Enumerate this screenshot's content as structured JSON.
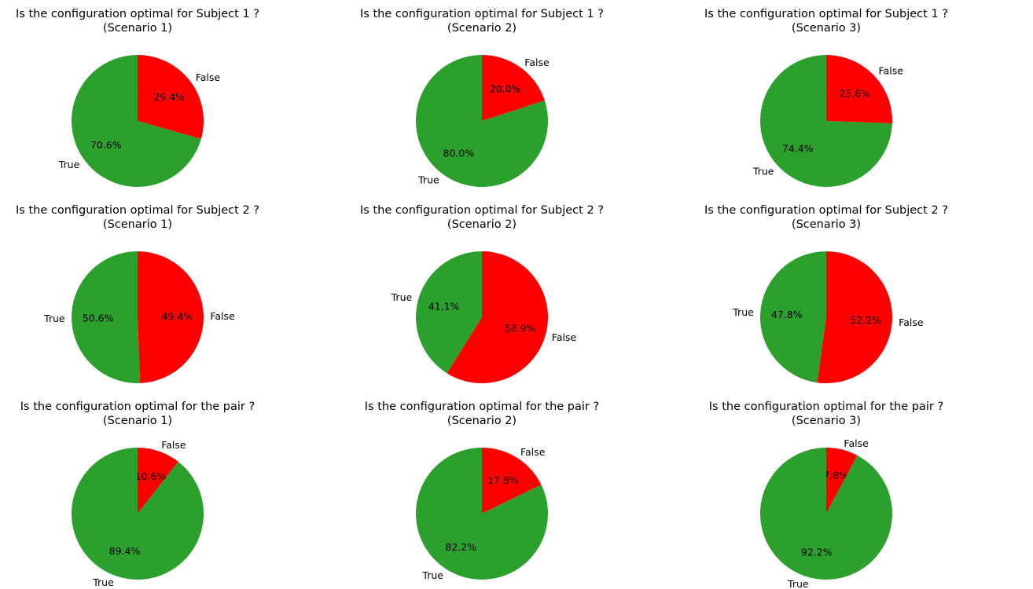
{
  "chart_data": [
    {
      "type": "pie",
      "title": "Is the configuration optimal for Subject 1 ?",
      "subtitle": "(Scenario 1)",
      "labels": [
        "False",
        "True"
      ],
      "values": [
        29.4,
        70.6
      ],
      "value_labels": [
        "29.4%",
        "70.6%"
      ],
      "colors": [
        "#ff0000",
        "#2ca02c"
      ],
      "start_angle": 90,
      "direction": "clockwise"
    },
    {
      "type": "pie",
      "title": "Is the configuration optimal for Subject 1 ?",
      "subtitle": "(Scenario 2)",
      "labels": [
        "False",
        "True"
      ],
      "values": [
        20.0,
        80.0
      ],
      "value_labels": [
        "20.0%",
        "80.0%"
      ],
      "colors": [
        "#ff0000",
        "#2ca02c"
      ],
      "start_angle": 90,
      "direction": "clockwise"
    },
    {
      "type": "pie",
      "title": "Is the configuration optimal for Subject 1 ?",
      "subtitle": "(Scenario 3)",
      "labels": [
        "False",
        "True"
      ],
      "values": [
        25.6,
        74.4
      ],
      "value_labels": [
        "25.6%",
        "74.4%"
      ],
      "colors": [
        "#ff0000",
        "#2ca02c"
      ],
      "start_angle": 90,
      "direction": "clockwise"
    },
    {
      "type": "pie",
      "title": "Is the configuration optimal for Subject 2 ?",
      "subtitle": "(Scenario 1)",
      "labels": [
        "False",
        "True"
      ],
      "values": [
        49.4,
        50.6
      ],
      "value_labels": [
        "49.4%",
        "50.6%"
      ],
      "colors": [
        "#ff0000",
        "#2ca02c"
      ],
      "start_angle": 90,
      "direction": "clockwise"
    },
    {
      "type": "pie",
      "title": "Is the configuration optimal for Subject 2 ?",
      "subtitle": "(Scenario 2)",
      "labels": [
        "False",
        "True"
      ],
      "values": [
        58.9,
        41.1
      ],
      "value_labels": [
        "58.9%",
        "41.1%"
      ],
      "colors": [
        "#ff0000",
        "#2ca02c"
      ],
      "start_angle": 90,
      "direction": "clockwise"
    },
    {
      "type": "pie",
      "title": "Is the configuration optimal for Subject 2 ?",
      "subtitle": "(Scenario 3)",
      "labels": [
        "False",
        "True"
      ],
      "values": [
        52.2,
        47.8
      ],
      "value_labels": [
        "52.2%",
        "47.8%"
      ],
      "colors": [
        "#ff0000",
        "#2ca02c"
      ],
      "start_angle": 90,
      "direction": "clockwise"
    },
    {
      "type": "pie",
      "title": "Is the configuration optimal for the pair ?",
      "subtitle": "(Scenario 1)",
      "labels": [
        "False",
        "True"
      ],
      "values": [
        10.6,
        89.4
      ],
      "value_labels": [
        "10.6%",
        "89.4%"
      ],
      "colors": [
        "#ff0000",
        "#2ca02c"
      ],
      "start_angle": 90,
      "direction": "clockwise"
    },
    {
      "type": "pie",
      "title": "Is the configuration optimal for the pair ?",
      "subtitle": "(Scenario 2)",
      "labels": [
        "False",
        "True"
      ],
      "values": [
        17.8,
        82.2
      ],
      "value_labels": [
        "17.8%",
        "82.2%"
      ],
      "colors": [
        "#ff0000",
        "#2ca02c"
      ],
      "start_angle": 90,
      "direction": "clockwise"
    },
    {
      "type": "pie",
      "title": "Is the configuration optimal for the pair ?",
      "subtitle": "(Scenario 3)",
      "labels": [
        "False",
        "True"
      ],
      "values": [
        7.8,
        92.2
      ],
      "value_labels": [
        "7.8%",
        "92.2%"
      ],
      "colors": [
        "#ff0000",
        "#2ca02c"
      ],
      "start_angle": 90,
      "direction": "clockwise"
    }
  ]
}
